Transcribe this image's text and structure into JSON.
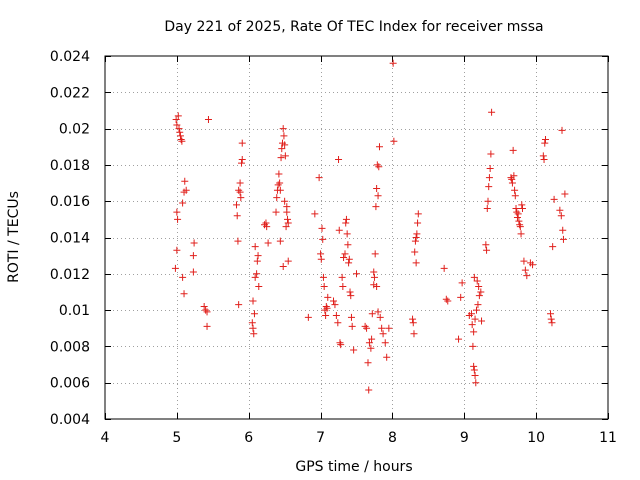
{
  "chart_data": {
    "type": "scatter",
    "title": "Day 221 of 2025, Rate Of TEC Index for receiver mssa",
    "xlabel": "GPS time / hours",
    "ylabel": "ROTI / TECUs",
    "xlim": [
      4,
      11
    ],
    "ylim": [
      0.004,
      0.024
    ],
    "xticks": [
      4,
      5,
      6,
      7,
      8,
      9,
      10,
      11
    ],
    "yticks": [
      0.004,
      0.006,
      0.008,
      0.01,
      0.012,
      0.014,
      0.016,
      0.018,
      0.02,
      0.022,
      0.024
    ],
    "xtick_labels": [
      "4",
      "5",
      "6",
      "7",
      "8",
      "9",
      "10",
      "11"
    ],
    "ytick_labels": [
      "0.004",
      "0.006",
      "0.008",
      "0.01",
      "0.012",
      "0.014",
      "0.016",
      "0.018",
      "0.02",
      "0.022",
      "0.024"
    ],
    "grid": true,
    "marker": "+",
    "color": "#e0201c",
    "series": [
      {
        "name": "ROTI",
        "points": [
          [
            4.99,
            0.0205
          ],
          [
            5.0,
            0.0202
          ],
          [
            5.02,
            0.0207
          ],
          [
            5.03,
            0.02
          ],
          [
            5.04,
            0.0198
          ],
          [
            5.05,
            0.0196
          ],
          [
            5.06,
            0.0194
          ],
          [
            5.07,
            0.0193
          ],
          [
            5.0,
            0.0154
          ],
          [
            5.01,
            0.015
          ],
          [
            5.0,
            0.0133
          ],
          [
            4.98,
            0.0123
          ],
          [
            5.08,
            0.0159
          ],
          [
            5.1,
            0.0165
          ],
          [
            5.13,
            0.0166
          ],
          [
            5.11,
            0.0171
          ],
          [
            5.08,
            0.0118
          ],
          [
            5.1,
            0.0109
          ],
          [
            5.23,
            0.013
          ],
          [
            5.24,
            0.0137
          ],
          [
            5.23,
            0.0121
          ],
          [
            5.38,
            0.0102
          ],
          [
            5.4,
            0.01
          ],
          [
            5.42,
            0.0099
          ],
          [
            5.42,
            0.0091
          ],
          [
            5.44,
            0.0205
          ],
          [
            5.83,
            0.0158
          ],
          [
            5.84,
            0.0152
          ],
          [
            5.85,
            0.0138
          ],
          [
            5.86,
            0.0166
          ],
          [
            5.88,
            0.0165
          ],
          [
            5.88,
            0.017
          ],
          [
            5.89,
            0.0162
          ],
          [
            5.9,
            0.0181
          ],
          [
            5.91,
            0.0183
          ],
          [
            5.91,
            0.0192
          ],
          [
            5.86,
            0.0103
          ],
          [
            6.05,
            0.0093
          ],
          [
            6.06,
            0.009
          ],
          [
            6.07,
            0.0087
          ],
          [
            6.08,
            0.0098
          ],
          [
            6.06,
            0.0105
          ],
          [
            6.09,
            0.0118
          ],
          [
            6.11,
            0.012
          ],
          [
            6.12,
            0.0127
          ],
          [
            6.13,
            0.013
          ],
          [
            6.09,
            0.0135
          ],
          [
            6.14,
            0.0113
          ],
          [
            6.22,
            0.0147
          ],
          [
            6.24,
            0.0148
          ],
          [
            6.25,
            0.0146
          ],
          [
            6.27,
            0.0137
          ],
          [
            6.38,
            0.0154
          ],
          [
            6.39,
            0.0162
          ],
          [
            6.4,
            0.0166
          ],
          [
            6.41,
            0.0169
          ],
          [
            6.42,
            0.0175
          ],
          [
            6.43,
            0.017
          ],
          [
            6.44,
            0.0166
          ],
          [
            6.45,
            0.0184
          ],
          [
            6.46,
            0.0189
          ],
          [
            6.47,
            0.0192
          ],
          [
            6.48,
            0.02
          ],
          [
            6.49,
            0.0196
          ],
          [
            6.5,
            0.0191
          ],
          [
            6.51,
            0.0185
          ],
          [
            6.53,
            0.0154
          ],
          [
            6.54,
            0.015
          ],
          [
            6.55,
            0.0148
          ],
          [
            6.52,
            0.0146
          ],
          [
            6.53,
            0.0157
          ],
          [
            6.5,
            0.016
          ],
          [
            6.48,
            0.0124
          ],
          [
            6.55,
            0.0127
          ],
          [
            6.44,
            0.0138
          ],
          [
            6.83,
            0.0096
          ],
          [
            6.92,
            0.0153
          ],
          [
            6.98,
            0.0173
          ],
          [
            7.0,
            0.0131
          ],
          [
            7.01,
            0.0128
          ],
          [
            7.02,
            0.0145
          ],
          [
            7.03,
            0.0139
          ],
          [
            7.04,
            0.0118
          ],
          [
            7.05,
            0.0113
          ],
          [
            7.06,
            0.01
          ],
          [
            7.07,
            0.0097
          ],
          [
            7.08,
            0.0102
          ],
          [
            7.09,
            0.0101
          ],
          [
            7.1,
            0.0107
          ],
          [
            7.18,
            0.0105
          ],
          [
            7.2,
            0.0103
          ],
          [
            7.22,
            0.0097
          ],
          [
            7.24,
            0.0093
          ],
          [
            7.25,
            0.0183
          ],
          [
            7.26,
            0.0144
          ],
          [
            7.27,
            0.0082
          ],
          [
            7.28,
            0.0081
          ],
          [
            7.3,
            0.0118
          ],
          [
            7.31,
            0.0113
          ],
          [
            7.32,
            0.0129
          ],
          [
            7.34,
            0.0131
          ],
          [
            7.35,
            0.0148
          ],
          [
            7.36,
            0.015
          ],
          [
            7.37,
            0.0142
          ],
          [
            7.38,
            0.0136
          ],
          [
            7.39,
            0.0126
          ],
          [
            7.4,
            0.0128
          ],
          [
            7.41,
            0.011
          ],
          [
            7.42,
            0.0108
          ],
          [
            7.43,
            0.0096
          ],
          [
            7.44,
            0.0091
          ],
          [
            7.46,
            0.0078
          ],
          [
            7.5,
            0.012
          ],
          [
            7.62,
            0.0091
          ],
          [
            7.64,
            0.009
          ],
          [
            7.66,
            0.0071
          ],
          [
            7.67,
            0.0056
          ],
          [
            7.68,
            0.0082
          ],
          [
            7.7,
            0.0079
          ],
          [
            7.71,
            0.0084
          ],
          [
            7.72,
            0.0098
          ],
          [
            7.74,
            0.0114
          ],
          [
            7.75,
            0.0118
          ],
          [
            7.76,
            0.0131
          ],
          [
            7.77,
            0.0157
          ],
          [
            7.78,
            0.0167
          ],
          [
            7.79,
            0.018
          ],
          [
            7.8,
            0.0163
          ],
          [
            7.81,
            0.0179
          ],
          [
            7.82,
            0.019
          ],
          [
            7.74,
            0.0121
          ],
          [
            7.78,
            0.0113
          ],
          [
            7.8,
            0.0099
          ],
          [
            7.83,
            0.0096
          ],
          [
            7.85,
            0.009
          ],
          [
            7.87,
            0.0087
          ],
          [
            7.9,
            0.0082
          ],
          [
            7.92,
            0.0074
          ],
          [
            7.95,
            0.009
          ],
          [
            8.01,
            0.0236
          ],
          [
            8.02,
            0.0193
          ],
          [
            8.28,
            0.0095
          ],
          [
            8.29,
            0.0093
          ],
          [
            8.3,
            0.0087
          ],
          [
            8.31,
            0.0132
          ],
          [
            8.32,
            0.0138
          ],
          [
            8.33,
            0.014
          ],
          [
            8.34,
            0.0142
          ],
          [
            8.35,
            0.0148
          ],
          [
            8.36,
            0.0153
          ],
          [
            8.33,
            0.0126
          ],
          [
            8.72,
            0.0123
          ],
          [
            8.75,
            0.0106
          ],
          [
            8.77,
            0.0105
          ],
          [
            8.92,
            0.0084
          ],
          [
            8.95,
            0.0107
          ],
          [
            8.97,
            0.0115
          ],
          [
            9.07,
            0.0097
          ],
          [
            9.1,
            0.0098
          ],
          [
            9.12,
            0.008
          ],
          [
            9.13,
            0.0069
          ],
          [
            9.14,
            0.0067
          ],
          [
            9.15,
            0.0064
          ],
          [
            9.16,
            0.006
          ],
          [
            9.11,
            0.0092
          ],
          [
            9.13,
            0.0088
          ],
          [
            9.15,
            0.0095
          ],
          [
            9.17,
            0.01
          ],
          [
            9.19,
            0.0103
          ],
          [
            9.21,
            0.0108
          ],
          [
            9.23,
            0.011
          ],
          [
            9.14,
            0.0118
          ],
          [
            9.18,
            0.0116
          ],
          [
            9.2,
            0.0113
          ],
          [
            9.24,
            0.0094
          ],
          [
            9.3,
            0.0136
          ],
          [
            9.31,
            0.0133
          ],
          [
            9.32,
            0.0156
          ],
          [
            9.33,
            0.016
          ],
          [
            9.34,
            0.0168
          ],
          [
            9.35,
            0.0173
          ],
          [
            9.36,
            0.0178
          ],
          [
            9.37,
            0.0186
          ],
          [
            9.38,
            0.0209
          ],
          [
            9.65,
            0.0173
          ],
          [
            9.66,
            0.0172
          ],
          [
            9.67,
            0.017
          ],
          [
            9.68,
            0.0188
          ],
          [
            9.69,
            0.0174
          ],
          [
            9.7,
            0.0166
          ],
          [
            9.71,
            0.0163
          ],
          [
            9.72,
            0.0156
          ],
          [
            9.73,
            0.0154
          ],
          [
            9.74,
            0.0151
          ],
          [
            9.75,
            0.0153
          ],
          [
            9.76,
            0.0149
          ],
          [
            9.77,
            0.0147
          ],
          [
            9.78,
            0.0146
          ],
          [
            9.79,
            0.0142
          ],
          [
            9.8,
            0.0158
          ],
          [
            9.81,
            0.0156
          ],
          [
            9.83,
            0.0127
          ],
          [
            9.85,
            0.0122
          ],
          [
            9.87,
            0.0119
          ],
          [
            9.92,
            0.0126
          ],
          [
            9.95,
            0.0125
          ],
          [
            10.1,
            0.0185
          ],
          [
            10.11,
            0.0183
          ],
          [
            10.12,
            0.0192
          ],
          [
            10.13,
            0.0194
          ],
          [
            10.2,
            0.0098
          ],
          [
            10.21,
            0.0095
          ],
          [
            10.22,
            0.0093
          ],
          [
            10.23,
            0.0135
          ],
          [
            10.25,
            0.0161
          ],
          [
            10.33,
            0.0155
          ],
          [
            10.35,
            0.0152
          ],
          [
            10.36,
            0.0199
          ],
          [
            10.37,
            0.0144
          ],
          [
            10.38,
            0.0139
          ],
          [
            10.4,
            0.0164
          ]
        ]
      }
    ]
  }
}
